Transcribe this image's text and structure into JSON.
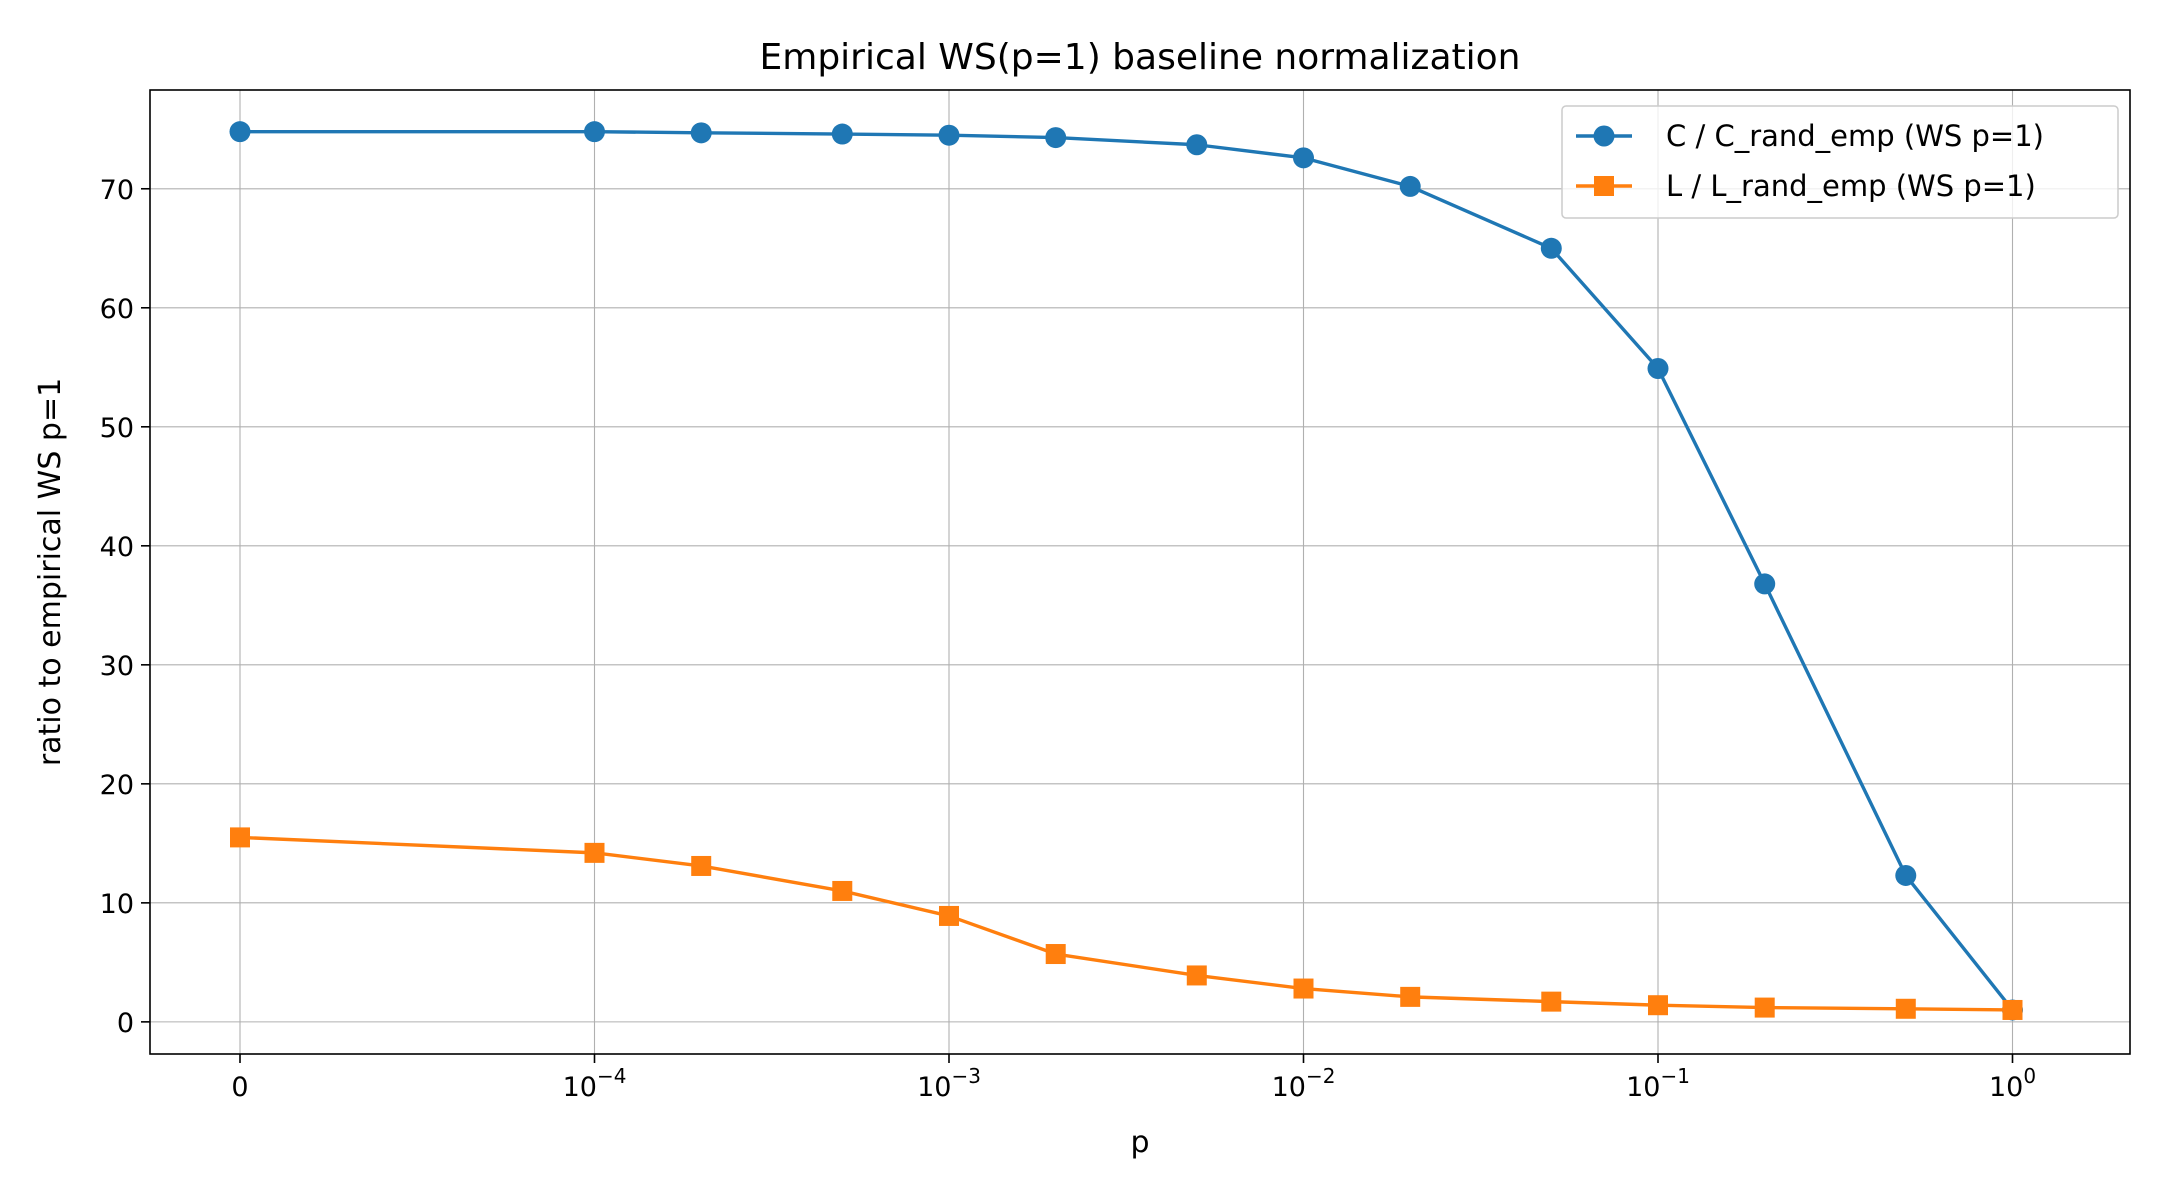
{
  "chart_data": {
    "type": "line",
    "title": "Empirical WS(p=1) baseline normalization",
    "xlabel": "p",
    "ylabel": "ratio to empirical WS p=1",
    "xscale": "symlog",
    "x_tick_labels": [
      {
        "value": 0,
        "base": "0",
        "exp": ""
      },
      {
        "value": 0.0001,
        "base": "10",
        "exp": "−4"
      },
      {
        "value": 0.001,
        "base": "10",
        "exp": "−3"
      },
      {
        "value": 0.01,
        "base": "10",
        "exp": "−2"
      },
      {
        "value": 0.1,
        "base": "10",
        "exp": "−1"
      },
      {
        "value": 1,
        "base": "10",
        "exp": "0"
      }
    ],
    "y_ticks": [
      0,
      10,
      20,
      30,
      40,
      50,
      60,
      70
    ],
    "ylim": [
      -2.7,
      78.3
    ],
    "grid": true,
    "legend_position": "upper right",
    "x": [
      0,
      0.0001,
      0.0002,
      0.0005,
      0.001,
      0.002,
      0.005,
      0.01,
      0.02,
      0.05,
      0.1,
      0.2,
      0.5,
      1
    ],
    "series": [
      {
        "name": "C / C_rand_emp (WS p=1)",
        "color": "#1f77b4",
        "marker": "circle",
        "values": [
          74.8,
          74.8,
          74.7,
          74.6,
          74.5,
          74.3,
          73.7,
          72.6,
          70.2,
          65.0,
          54.9,
          36.8,
          12.3,
          1.0
        ]
      },
      {
        "name": "L / L_rand_emp (WS p=1)",
        "color": "#ff7f0e",
        "marker": "square",
        "values": [
          15.5,
          14.2,
          13.1,
          11.0,
          8.9,
          5.7,
          3.9,
          2.8,
          2.1,
          1.7,
          1.4,
          1.2,
          1.1,
          1.0
        ]
      }
    ]
  }
}
